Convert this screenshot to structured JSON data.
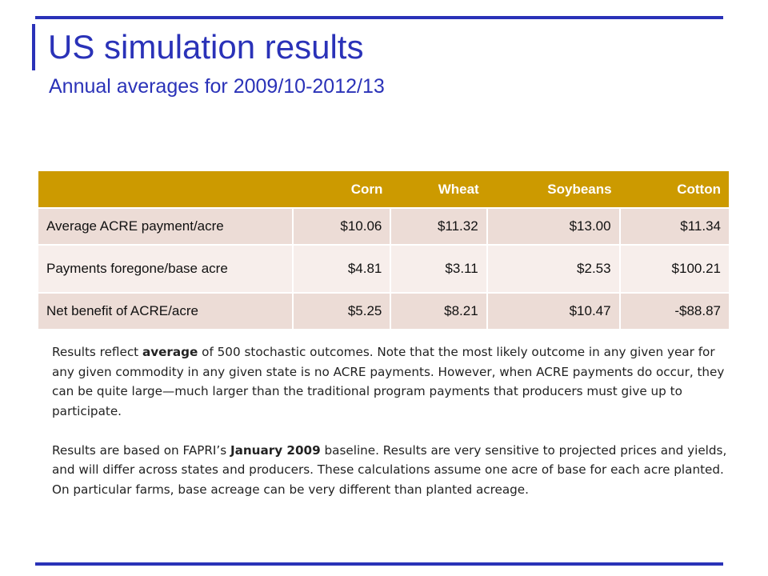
{
  "slide": {
    "title": "US simulation results",
    "subtitle": "Annual averages for 2009/10-2012/13"
  },
  "table": {
    "columns": [
      "",
      "Corn",
      "Wheat",
      "Soybeans",
      "Cotton"
    ],
    "rows": [
      {
        "label": "Average ACRE payment/acre",
        "values": [
          "$10.06",
          "$11.32",
          "$13.00",
          "$11.34"
        ]
      },
      {
        "label": "Payments foregone/base acre",
        "values": [
          "$4.81",
          "$3.11",
          "$2.53",
          "$100.21"
        ]
      },
      {
        "label": "Net benefit of ACRE/acre",
        "values": [
          "$5.25",
          "$8.21",
          "$10.47",
          "-$88.87"
        ]
      }
    ]
  },
  "notes": {
    "p1": {
      "pre": "Results reflect ",
      "bold": "average",
      "post": " of 500 stochastic outcomes. Note that the most likely outcome in any given year for any given commodity in any given state is no ACRE payments. However, when ACRE payments do occur, they can be quite large—much larger than the traditional program payments that producers must give up to participate."
    },
    "p2": {
      "pre": "Results are based on FAPRI’s ",
      "bold": "January 2009",
      "post": " baseline. Results are very sensitive to projected prices and yields, and will differ across states and producers. These calculations assume one acre of base for each acre planted. On particular farms, base acreage can be very different than planted acreage."
    }
  },
  "colors": {
    "accent": "#2a32b8",
    "header_fill": "#cc9a00",
    "row_odd": "#ecdcd6",
    "row_even": "#f7eeeb"
  }
}
